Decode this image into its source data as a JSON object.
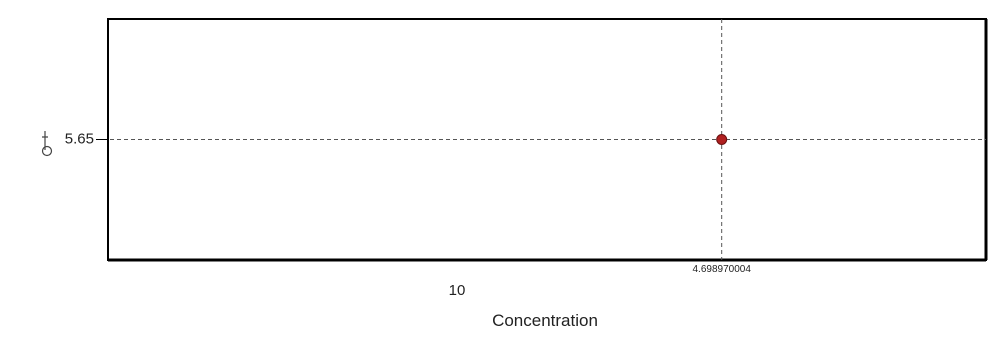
{
  "chart_data": {
    "type": "scatter",
    "title": "",
    "xlabel": "Concentration",
    "ylabel": "",
    "x_ticks": [
      "10"
    ],
    "y_ticks": [
      "5.65"
    ],
    "points": [
      {
        "x": 4.698970004,
        "y": 5.65,
        "label": "4.698970004"
      }
    ],
    "crosshair": {
      "x": 4.698970004,
      "y": 5.65
    },
    "xlim": [
      4.0,
      5.0
    ],
    "ylim": [
      5.0,
      6.3
    ],
    "grid": false,
    "colors": {
      "point": "#b02020",
      "crosshair": "#555555",
      "frame": "#000000"
    }
  }
}
